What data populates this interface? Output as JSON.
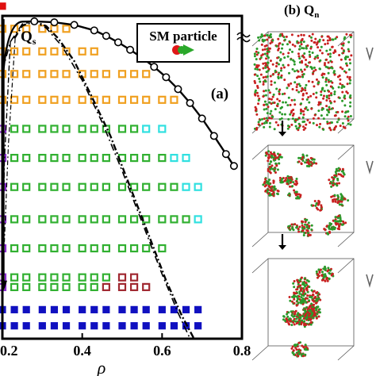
{
  "chart_data": {
    "type": "scatter",
    "xlabel": "ρ",
    "xlim": [
      0.2,
      0.8
    ],
    "ylim": [
      0.0,
      1.0
    ],
    "x_ticks": [
      0.2,
      0.4,
      0.6,
      0.8
    ],
    "x_tick_labels": [
      "0.2",
      "0.4",
      "0.6",
      "0.8"
    ],
    "panel_a_label": "(a)",
    "panel_b_label": "(b)",
    "qs_label": "Q",
    "qs_sub": "s",
    "qn_label": "Q",
    "qn_sub": "n",
    "legend_text": "SM particle",
    "legend_position": "top-right",
    "grid": false,
    "colors": {
      "orange": "#f0a020",
      "green": "#30b030",
      "cyan": "#30e0e0",
      "maroon": "#a02830",
      "purple": "#8a2bd0",
      "blue": "#1010c0",
      "red": "#e01010"
    },
    "phase_boundary": {
      "x": [
        0.25,
        0.28,
        0.33,
        0.38,
        0.43,
        0.46,
        0.49,
        0.52,
        0.55,
        0.58,
        0.61,
        0.64,
        0.67,
        0.7,
        0.73,
        0.76,
        0.78
      ],
      "y": [
        0.982,
        0.983,
        0.98,
        0.972,
        0.955,
        0.938,
        0.918,
        0.895,
        0.87,
        0.842,
        0.81,
        0.773,
        0.73,
        0.682,
        0.628,
        0.572,
        0.535
      ]
    },
    "dashdot_curve": {
      "x": [
        0.2,
        0.22,
        0.25,
        0.28,
        0.31,
        0.35,
        0.4,
        0.45,
        0.5,
        0.55,
        0.6,
        0.64,
        0.67
      ],
      "y": [
        0.83,
        0.92,
        0.975,
        0.983,
        0.962,
        0.905,
        0.8,
        0.67,
        0.52,
        0.36,
        0.2,
        0.08,
        0.0
      ]
    },
    "dashed_curve": {
      "x": [
        0.23,
        0.25,
        0.28,
        0.31,
        0.34,
        0.38,
        0.42,
        0.47,
        0.52,
        0.57,
        0.61,
        0.65,
        0.68,
        0.7
      ],
      "y": [
        0.93,
        0.97,
        0.983,
        0.968,
        0.93,
        0.86,
        0.76,
        0.63,
        0.47,
        0.31,
        0.18,
        0.07,
        0.0,
        -0.04
      ]
    },
    "vertical_line_x": 0.2,
    "series": [
      {
        "color": "orange",
        "points": [
          [
            0.2,
            0.96
          ],
          [
            0.23,
            0.96
          ],
          [
            0.26,
            0.96
          ],
          [
            0.3,
            0.96
          ],
          [
            0.33,
            0.96
          ],
          [
            0.36,
            0.96
          ],
          [
            0.2,
            0.89
          ],
          [
            0.23,
            0.89
          ],
          [
            0.26,
            0.89
          ],
          [
            0.3,
            0.89
          ],
          [
            0.33,
            0.89
          ],
          [
            0.36,
            0.89
          ],
          [
            0.4,
            0.89
          ],
          [
            0.43,
            0.89
          ],
          [
            0.2,
            0.82
          ],
          [
            0.23,
            0.82
          ],
          [
            0.26,
            0.82
          ],
          [
            0.3,
            0.82
          ],
          [
            0.33,
            0.82
          ],
          [
            0.36,
            0.82
          ],
          [
            0.4,
            0.82
          ],
          [
            0.43,
            0.82
          ],
          [
            0.46,
            0.82
          ],
          [
            0.5,
            0.82
          ],
          [
            0.53,
            0.82
          ],
          [
            0.56,
            0.82
          ],
          [
            0.2,
            0.74
          ],
          [
            0.23,
            0.74
          ],
          [
            0.26,
            0.74
          ],
          [
            0.3,
            0.74
          ],
          [
            0.33,
            0.74
          ],
          [
            0.36,
            0.74
          ],
          [
            0.4,
            0.74
          ],
          [
            0.43,
            0.74
          ],
          [
            0.46,
            0.74
          ],
          [
            0.5,
            0.74
          ],
          [
            0.53,
            0.74
          ],
          [
            0.56,
            0.74
          ],
          [
            0.6,
            0.74
          ],
          [
            0.63,
            0.74
          ]
        ]
      },
      {
        "color": "green",
        "points": [
          [
            0.23,
            0.65
          ],
          [
            0.26,
            0.65
          ],
          [
            0.3,
            0.65
          ],
          [
            0.33,
            0.65
          ],
          [
            0.36,
            0.65
          ],
          [
            0.4,
            0.65
          ],
          [
            0.43,
            0.65
          ],
          [
            0.46,
            0.65
          ],
          [
            0.5,
            0.65
          ],
          [
            0.53,
            0.65
          ],
          [
            0.23,
            0.56
          ],
          [
            0.26,
            0.56
          ],
          [
            0.3,
            0.56
          ],
          [
            0.33,
            0.56
          ],
          [
            0.36,
            0.56
          ],
          [
            0.4,
            0.56
          ],
          [
            0.43,
            0.56
          ],
          [
            0.46,
            0.56
          ],
          [
            0.5,
            0.56
          ],
          [
            0.53,
            0.56
          ],
          [
            0.56,
            0.56
          ],
          [
            0.6,
            0.56
          ],
          [
            0.23,
            0.47
          ],
          [
            0.26,
            0.47
          ],
          [
            0.3,
            0.47
          ],
          [
            0.33,
            0.47
          ],
          [
            0.36,
            0.47
          ],
          [
            0.4,
            0.47
          ],
          [
            0.43,
            0.47
          ],
          [
            0.46,
            0.47
          ],
          [
            0.5,
            0.47
          ],
          [
            0.53,
            0.47
          ],
          [
            0.56,
            0.47
          ],
          [
            0.6,
            0.47
          ],
          [
            0.63,
            0.47
          ],
          [
            0.23,
            0.37
          ],
          [
            0.26,
            0.37
          ],
          [
            0.3,
            0.37
          ],
          [
            0.33,
            0.37
          ],
          [
            0.36,
            0.37
          ],
          [
            0.4,
            0.37
          ],
          [
            0.43,
            0.37
          ],
          [
            0.46,
            0.37
          ],
          [
            0.5,
            0.37
          ],
          [
            0.53,
            0.37
          ],
          [
            0.56,
            0.37
          ],
          [
            0.6,
            0.37
          ],
          [
            0.63,
            0.37
          ],
          [
            0.66,
            0.37
          ],
          [
            0.23,
            0.28
          ],
          [
            0.26,
            0.28
          ],
          [
            0.3,
            0.28
          ],
          [
            0.33,
            0.28
          ],
          [
            0.36,
            0.28
          ],
          [
            0.4,
            0.28
          ],
          [
            0.43,
            0.28
          ],
          [
            0.46,
            0.28
          ],
          [
            0.5,
            0.28
          ],
          [
            0.53,
            0.28
          ],
          [
            0.56,
            0.28
          ],
          [
            0.6,
            0.28
          ],
          [
            0.23,
            0.19
          ],
          [
            0.26,
            0.19
          ],
          [
            0.3,
            0.19
          ],
          [
            0.33,
            0.19
          ],
          [
            0.36,
            0.19
          ],
          [
            0.4,
            0.19
          ],
          [
            0.43,
            0.19
          ],
          [
            0.46,
            0.19
          ],
          [
            0.23,
            0.16
          ],
          [
            0.26,
            0.16
          ],
          [
            0.3,
            0.16
          ],
          [
            0.33,
            0.16
          ],
          [
            0.36,
            0.16
          ],
          [
            0.4,
            0.16
          ],
          [
            0.43,
            0.16
          ]
        ]
      },
      {
        "color": "cyan",
        "points": [
          [
            0.56,
            0.65
          ],
          [
            0.6,
            0.65
          ],
          [
            0.63,
            0.56
          ],
          [
            0.66,
            0.56
          ],
          [
            0.66,
            0.47
          ],
          [
            0.69,
            0.47
          ],
          [
            0.69,
            0.37
          ]
        ]
      },
      {
        "color": "maroon",
        "points": [
          [
            0.5,
            0.19
          ],
          [
            0.53,
            0.19
          ],
          [
            0.46,
            0.16
          ],
          [
            0.5,
            0.16
          ],
          [
            0.53,
            0.16
          ],
          [
            0.56,
            0.16
          ]
        ]
      },
      {
        "color": "purple",
        "points": [
          [
            0.2,
            0.65
          ],
          [
            0.2,
            0.56
          ],
          [
            0.2,
            0.47
          ],
          [
            0.2,
            0.37
          ],
          [
            0.2,
            0.28
          ],
          [
            0.2,
            0.19
          ],
          [
            0.2,
            0.16
          ]
        ]
      },
      {
        "color": "blue",
        "points": [
          [
            0.2,
            0.09
          ],
          [
            0.23,
            0.09
          ],
          [
            0.26,
            0.09
          ],
          [
            0.3,
            0.09
          ],
          [
            0.33,
            0.09
          ],
          [
            0.36,
            0.09
          ],
          [
            0.4,
            0.09
          ],
          [
            0.43,
            0.09
          ],
          [
            0.46,
            0.09
          ],
          [
            0.5,
            0.09
          ],
          [
            0.53,
            0.09
          ],
          [
            0.56,
            0.09
          ],
          [
            0.6,
            0.09
          ],
          [
            0.63,
            0.09
          ],
          [
            0.66,
            0.09
          ],
          [
            0.69,
            0.09
          ],
          [
            0.2,
            0.04
          ],
          [
            0.23,
            0.04
          ],
          [
            0.26,
            0.04
          ],
          [
            0.3,
            0.04
          ],
          [
            0.33,
            0.04
          ],
          [
            0.36,
            0.04
          ],
          [
            0.4,
            0.04
          ],
          [
            0.43,
            0.04
          ],
          [
            0.46,
            0.04
          ],
          [
            0.5,
            0.04
          ],
          [
            0.53,
            0.04
          ],
          [
            0.56,
            0.04
          ],
          [
            0.6,
            0.04
          ],
          [
            0.63,
            0.04
          ],
          [
            0.66,
            0.04
          ],
          [
            0.69,
            0.04
          ]
        ]
      },
      {
        "color": "red",
        "points": [
          [
            0.2,
            1.03
          ]
        ]
      }
    ],
    "snapshots": [
      {
        "state": "disordered"
      },
      {
        "state": "small-clusters"
      },
      {
        "state": "large-clusters"
      }
    ]
  }
}
